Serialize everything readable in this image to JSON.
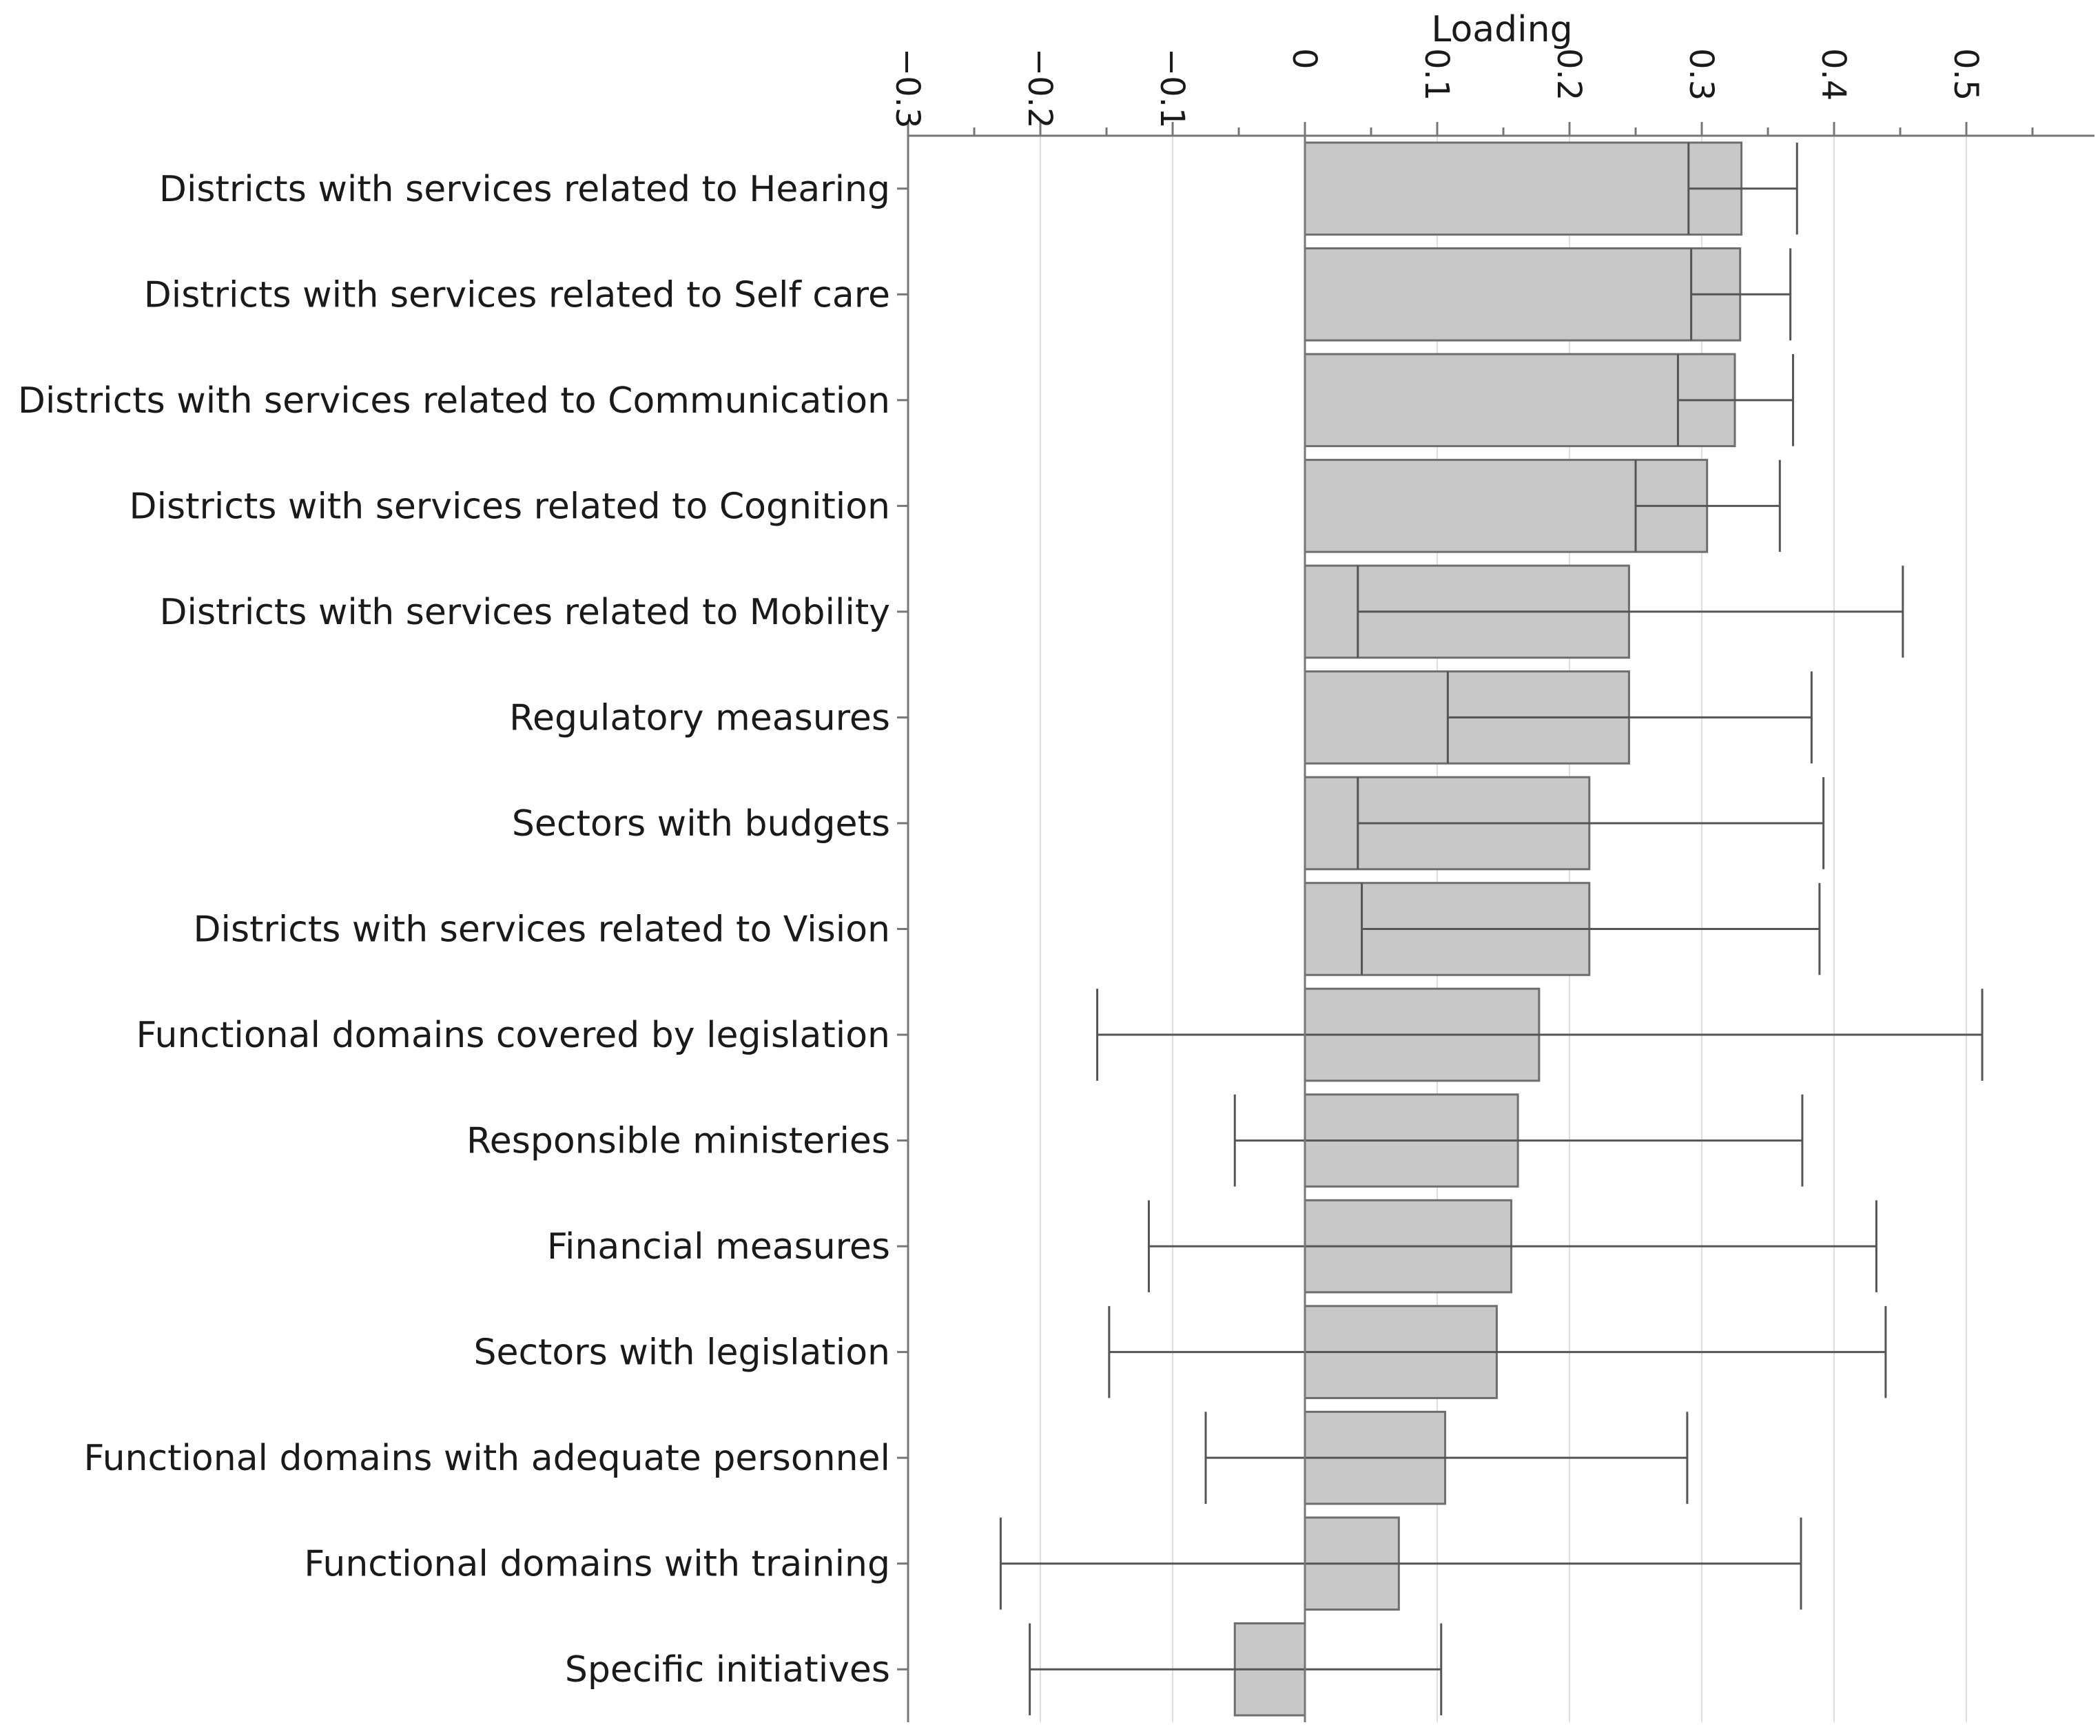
{
  "chart_data": {
    "type": "bar",
    "orientation": "horizontal",
    "title": "",
    "xlabel": "Loading",
    "ylabel": "",
    "xlim": [
      -0.3,
      0.6
    ],
    "xticks": [
      -0.3,
      -0.2,
      -0.1,
      0,
      0.1,
      0.2,
      0.3,
      0.4,
      0.5
    ],
    "xtick_labels": [
      "−0.3",
      "−0.2",
      "−0.1",
      "0",
      "0.1",
      "0.2",
      "0.3",
      "0.4",
      "0.5"
    ],
    "grid": true,
    "categories": [
      "Districts with services related to Hearing",
      "Districts with services related to Self care",
      "Districts with services related to Communication",
      "Districts with services related to Cognition",
      "Districts with services related to Mobility",
      "Regulatory measures",
      "Sectors with budgets",
      "Districts with services related to Vision",
      "Functional domains covered by legislation",
      "Responsible ministeries",
      "Financial measures",
      "Sectors with legislation",
      "Functional domains with adequate personnel",
      "Functional domains with training",
      "Specific initiatives"
    ],
    "values": [
      0.33,
      0.329,
      0.325,
      0.304,
      0.245,
      0.245,
      0.215,
      0.215,
      0.177,
      0.161,
      0.156,
      0.145,
      0.106,
      0.071,
      -0.053
    ],
    "error_low": [
      0.29,
      0.292,
      0.282,
      0.25,
      0.04,
      0.108,
      0.04,
      0.043,
      -0.157,
      -0.053,
      -0.118,
      -0.148,
      -0.075,
      -0.23,
      -0.208
    ],
    "error_high": [
      0.372,
      0.367,
      0.369,
      0.359,
      0.452,
      0.383,
      0.392,
      0.389,
      0.512,
      0.376,
      0.432,
      0.439,
      0.289,
      0.375,
      0.103
    ],
    "colors": {
      "bar_fill": "#c8c8c8",
      "bar_stroke": "#6e6e6e",
      "axis": "#777777",
      "grid": "#dddddd",
      "error": "#555555"
    }
  }
}
